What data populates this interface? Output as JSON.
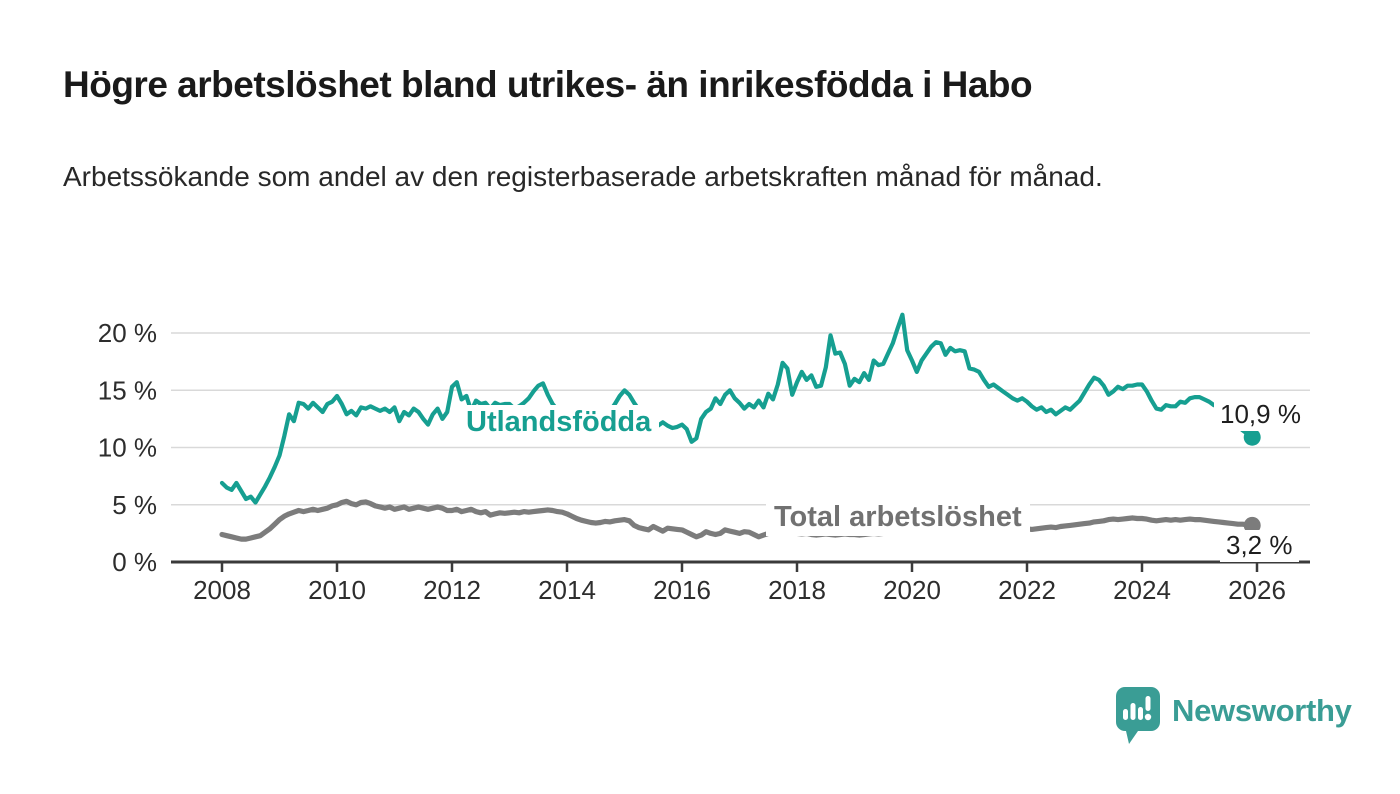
{
  "header": {
    "title": "Högre arbetslöshet bland utrikes- än inrikesfödda i Habo",
    "subtitle": "Arbetssökande som andel av den registerbaserade arbetskraften månad för månad."
  },
  "chart_data": {
    "type": "line",
    "unit": "%",
    "grid": true,
    "x_start_year": 2008,
    "points_per_year": 12,
    "x_tick_years": [
      2008,
      2010,
      2012,
      2014,
      2016,
      2018,
      2020,
      2022,
      2024,
      2026
    ],
    "y_ticks": [
      0,
      5,
      10,
      15,
      20
    ],
    "y_tick_labels": [
      "0 %",
      "5 %",
      "10 %",
      "15 %",
      "20 %"
    ],
    "ylim": [
      0,
      22
    ],
    "axis_color": "#3a3a3a",
    "gridline_color": "#d9d9d9",
    "series": [
      {
        "name": "Utlandsfödda",
        "color": "#169f91",
        "end_label": "10,9 %",
        "last_value": 10.9,
        "values": [
          6.9,
          6.5,
          6.3,
          6.9,
          6.2,
          5.5,
          5.7,
          5.2,
          5.9,
          6.6,
          7.4,
          8.3,
          9.3,
          11.0,
          12.9,
          12.3,
          13.9,
          13.8,
          13.4,
          13.9,
          13.5,
          13.1,
          13.8,
          14.0,
          14.5,
          13.8,
          12.9,
          13.2,
          12.8,
          13.5,
          13.4,
          13.6,
          13.4,
          13.2,
          13.4,
          13.1,
          13.5,
          12.3,
          13.1,
          12.8,
          13.4,
          13.1,
          12.5,
          12.0,
          12.9,
          13.4,
          12.5,
          13.1,
          15.3,
          15.7,
          14.2,
          14.5,
          13.2,
          14.1,
          13.8,
          13.9,
          13.4,
          13.9,
          13.7,
          13.8,
          13.8,
          13.4,
          13.6,
          13.9,
          14.3,
          14.9,
          15.4,
          15.6,
          14.6,
          13.8,
          13.3,
          13.1,
          12.9,
          12.6,
          12.4,
          12.1,
          12.3,
          12.0,
          12.2,
          12.4,
          12.7,
          13.2,
          13.8,
          14.5,
          15.0,
          14.6,
          13.9,
          13.3,
          12.8,
          12.4,
          12.1,
          11.9,
          12.2,
          11.9,
          11.7,
          11.8,
          12.0,
          11.6,
          10.5,
          10.8,
          12.5,
          13.1,
          13.4,
          14.3,
          13.8,
          14.6,
          15.0,
          14.3,
          13.9,
          13.4,
          13.8,
          13.5,
          14.1,
          13.5,
          14.7,
          14.2,
          15.5,
          17.4,
          16.9,
          14.6,
          15.7,
          16.6,
          15.9,
          16.3,
          15.3,
          15.4,
          17.0,
          19.8,
          18.2,
          18.3,
          17.3,
          15.4,
          16.0,
          15.7,
          16.5,
          15.9,
          17.6,
          17.2,
          17.3,
          18.2,
          19.1,
          20.4,
          21.6,
          18.5,
          17.6,
          16.6,
          17.6,
          18.2,
          18.8,
          19.2,
          19.1,
          18.1,
          18.7,
          18.4,
          18.5,
          18.4,
          16.9,
          16.8,
          16.6,
          15.9,
          15.3,
          15.5,
          15.2,
          14.9,
          14.6,
          14.3,
          14.1,
          14.3,
          14.0,
          13.6,
          13.3,
          13.5,
          13.1,
          13.3,
          12.9,
          13.2,
          13.5,
          13.3,
          13.7,
          14.1,
          14.8,
          15.5,
          16.1,
          15.9,
          15.4,
          14.6,
          14.9,
          15.3,
          15.1,
          15.4,
          15.4,
          15.5,
          15.5,
          14.9,
          14.1,
          13.4,
          13.3,
          13.7,
          13.6,
          13.6,
          14.0,
          13.9,
          14.3,
          14.4,
          14.4,
          14.2,
          14.0,
          13.7,
          13.5,
          13.2,
          12.8,
          12.3,
          11.9,
          11.5,
          11.2,
          10.9
        ]
      },
      {
        "name": "Total arbetslöshet",
        "color": "#7c7c7c",
        "end_label": "3,2 %",
        "last_value": 3.2,
        "values": [
          2.4,
          2.3,
          2.2,
          2.1,
          2.0,
          2.0,
          2.1,
          2.2,
          2.3,
          2.6,
          2.9,
          3.3,
          3.7,
          4.0,
          4.2,
          4.35,
          4.5,
          4.4,
          4.5,
          4.6,
          4.5,
          4.6,
          4.7,
          4.9,
          5.0,
          5.2,
          5.3,
          5.1,
          5.0,
          5.2,
          5.25,
          5.1,
          4.9,
          4.8,
          4.7,
          4.8,
          4.6,
          4.7,
          4.8,
          4.6,
          4.7,
          4.8,
          4.7,
          4.6,
          4.7,
          4.8,
          4.7,
          4.5,
          4.5,
          4.6,
          4.4,
          4.5,
          4.6,
          4.4,
          4.3,
          4.4,
          4.1,
          4.2,
          4.3,
          4.25,
          4.3,
          4.35,
          4.3,
          4.4,
          4.35,
          4.4,
          4.45,
          4.5,
          4.55,
          4.5,
          4.4,
          4.35,
          4.2,
          4.0,
          3.8,
          3.65,
          3.55,
          3.45,
          3.4,
          3.45,
          3.55,
          3.5,
          3.6,
          3.65,
          3.7,
          3.6,
          3.2,
          3.0,
          2.9,
          2.8,
          3.1,
          2.9,
          2.7,
          2.95,
          2.9,
          2.85,
          2.8,
          2.6,
          2.4,
          2.2,
          2.35,
          2.65,
          2.5,
          2.4,
          2.5,
          2.8,
          2.7,
          2.6,
          2.5,
          2.65,
          2.6,
          2.4,
          2.2,
          2.35,
          2.5,
          2.65,
          2.6,
          2.6,
          2.5,
          2.5,
          2.5,
          2.45,
          2.5,
          2.4,
          2.35,
          2.4,
          2.45,
          2.4,
          2.35,
          2.4,
          2.45,
          2.4,
          2.4,
          2.35,
          2.4,
          2.45,
          2.5,
          2.45,
          2.5,
          2.55,
          2.6,
          2.65,
          2.7,
          2.8,
          2.9,
          3.0,
          3.2,
          3.4,
          3.5,
          3.55,
          3.5,
          3.45,
          3.4,
          3.35,
          3.3,
          3.25,
          3.2,
          3.15,
          3.1,
          3.05,
          3.0,
          2.95,
          2.9,
          2.85,
          2.8,
          2.8,
          2.8,
          2.85,
          2.9,
          2.85,
          2.9,
          2.95,
          3.0,
          3.05,
          3.0,
          3.1,
          3.15,
          3.2,
          3.25,
          3.3,
          3.35,
          3.4,
          3.5,
          3.55,
          3.6,
          3.7,
          3.75,
          3.7,
          3.75,
          3.8,
          3.85,
          3.8,
          3.8,
          3.75,
          3.65,
          3.6,
          3.65,
          3.7,
          3.65,
          3.7,
          3.65,
          3.7,
          3.75,
          3.7,
          3.7,
          3.65,
          3.6,
          3.55,
          3.5,
          3.45,
          3.4,
          3.35,
          3.3,
          3.3,
          3.25,
          3.2
        ]
      }
    ]
  },
  "branding": {
    "logo_text": "Newsworthy",
    "logo_color": "#3a9d95",
    "logo_icon": "bar-chart-speech-bubble-icon"
  }
}
